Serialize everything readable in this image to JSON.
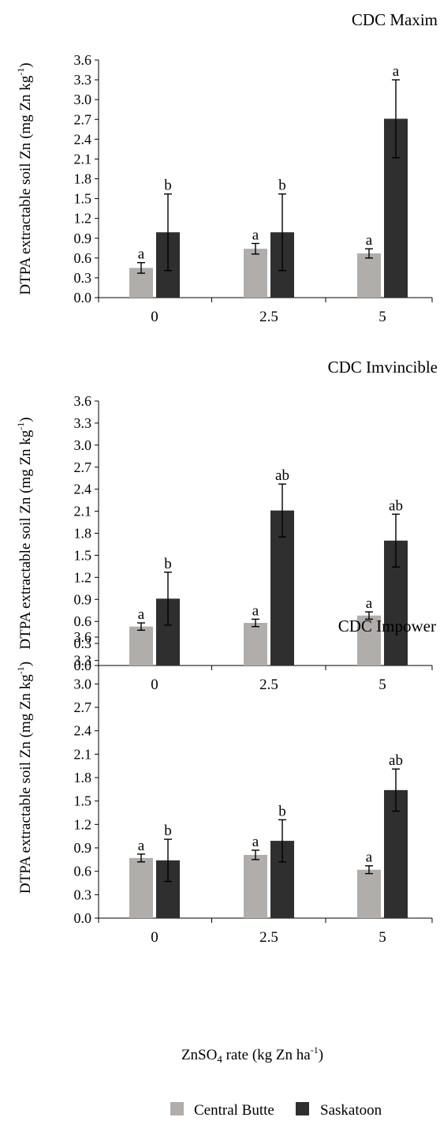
{
  "shared": {
    "ylabel_main": "DTPA extractable soil Zn (mg Zn kg",
    "ylabel_sup": "-1",
    "ylabel_close": ")",
    "xlabel_part1": "ZnSO",
    "xlabel_sub": "4",
    "xlabel_part2": " rate (kg Zn ha",
    "xlabel_sup": "-1",
    "xlabel_close": ")",
    "legend_position": "bottom",
    "colors": {
      "Central Butte": "#b1adab",
      "Saskatoon": "#2f2f2f"
    }
  },
  "chart_data": [
    {
      "type": "bar",
      "title": "CDC Maxim",
      "categories": [
        "0",
        "2.5",
        "5"
      ],
      "ylim": [
        0,
        3.6
      ],
      "yticks": [
        "0.0",
        "0.3",
        "0.6",
        "0.9",
        "1.2",
        "1.5",
        "1.8",
        "2.1",
        "2.4",
        "2.7",
        "3.0",
        "3.3",
        "3.6"
      ],
      "grid": false,
      "series": [
        {
          "name": "Central Butte",
          "values": [
            0.45,
            0.74,
            0.67
          ],
          "errors": [
            0.08,
            0.08,
            0.07
          ],
          "labels": [
            "a",
            "a",
            "a"
          ]
        },
        {
          "name": "Saskatoon",
          "values": [
            0.99,
            0.99,
            2.71
          ],
          "errors": [
            0.58,
            0.58,
            0.59
          ],
          "labels": [
            "b",
            "b",
            "a"
          ]
        }
      ]
    },
    {
      "type": "bar",
      "title": "CDC Imvincible",
      "categories": [
        "0",
        "2.5",
        "5"
      ],
      "ylim": [
        0,
        3.6
      ],
      "yticks": [
        "0.0",
        "0.3",
        "0.6",
        "0.9",
        "1.2",
        "1.5",
        "1.8",
        "2.1",
        "2.4",
        "2.7",
        "3.0",
        "3.3",
        "3.6"
      ],
      "grid": false,
      "series": [
        {
          "name": "Central Butte",
          "values": [
            0.53,
            0.58,
            0.68
          ],
          "errors": [
            0.05,
            0.05,
            0.05
          ],
          "labels": [
            "a",
            "a",
            "a"
          ]
        },
        {
          "name": "Saskatoon",
          "values": [
            0.91,
            2.11,
            1.7
          ],
          "errors": [
            0.36,
            0.36,
            0.36
          ],
          "labels": [
            "b",
            "ab",
            "ab"
          ]
        }
      ]
    },
    {
      "type": "bar",
      "title": "CDC Impower",
      "categories": [
        "0",
        "2.5",
        "5"
      ],
      "ylim": [
        0,
        3.6
      ],
      "yticks": [
        "0.0",
        "0.3",
        "0.6",
        "0.9",
        "1.2",
        "1.5",
        "1.8",
        "2.1",
        "2.4",
        "2.7",
        "3.0",
        "3.3",
        "3.6"
      ],
      "grid": false,
      "series": [
        {
          "name": "Central Butte",
          "values": [
            0.77,
            0.81,
            0.62
          ],
          "errors": [
            0.05,
            0.06,
            0.05
          ],
          "labels": [
            "a",
            "a",
            "a"
          ]
        },
        {
          "name": "Saskatoon",
          "values": [
            0.74,
            0.99,
            1.64
          ],
          "errors": [
            0.27,
            0.27,
            0.27
          ],
          "labels": [
            "b",
            "b",
            "ab"
          ]
        }
      ]
    }
  ]
}
